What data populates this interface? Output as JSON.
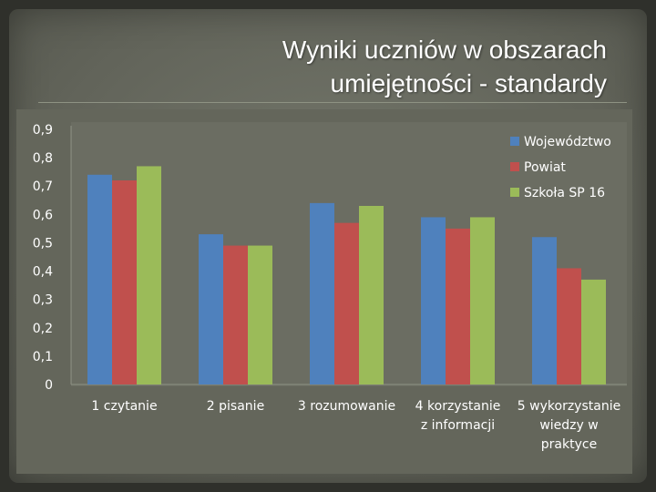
{
  "slide": {
    "title_lines": [
      "Wyniki uczniów w obszarach",
      "umiejętności - standardy"
    ]
  },
  "chart_data": {
    "type": "bar",
    "title": "",
    "xlabel": "",
    "ylabel": "",
    "ylim": [
      0,
      0.9
    ],
    "yticks": [
      "0",
      "0,1",
      "0,2",
      "0,3",
      "0,4",
      "0,5",
      "0,6",
      "0,7",
      "0,8",
      "0,9"
    ],
    "grid": false,
    "legend_position": "top-right",
    "categories": [
      [
        "1 czytanie"
      ],
      [
        "2 pisanie"
      ],
      [
        "3 rozumowanie"
      ],
      [
        "4 korzystanie",
        "z informacji"
      ],
      [
        "5 wykorzystanie",
        "wiedzy w",
        "praktyce"
      ]
    ],
    "series": [
      {
        "name": "Województwo",
        "color": "#4f81bd",
        "values": [
          0.74,
          0.53,
          0.64,
          0.59,
          0.52
        ]
      },
      {
        "name": "Powiat",
        "color": "#c0504d",
        "values": [
          0.72,
          0.49,
          0.57,
          0.55,
          0.41
        ]
      },
      {
        "name": "Szkoła SP 16",
        "color": "#9bbb59",
        "values": [
          0.77,
          0.49,
          0.63,
          0.59,
          0.37
        ]
      }
    ]
  }
}
